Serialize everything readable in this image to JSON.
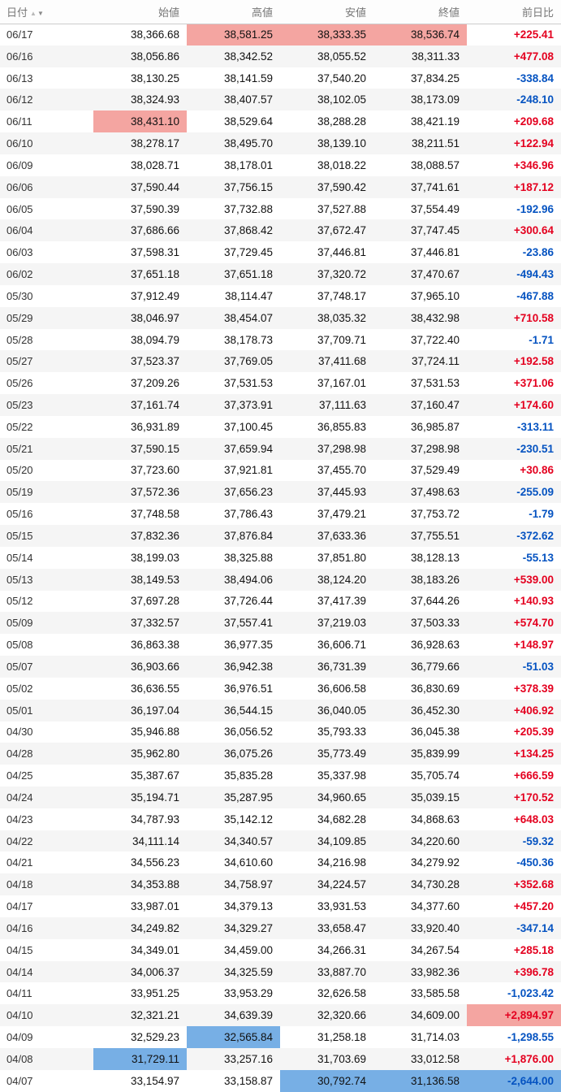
{
  "colors": {
    "positive_text": "#e4001f",
    "negative_text": "#0553c1",
    "period_high_bg": "#f4a5a1",
    "period_low_bg": "#77afe5",
    "alt_row_bg": "#f5f5f5",
    "header_text": "#777777"
  },
  "table": {
    "sort_icons": {
      "asc": "▲",
      "desc": "▼"
    },
    "columns": [
      {
        "key": "date",
        "label": "日付"
      },
      {
        "key": "open",
        "label": "始値"
      },
      {
        "key": "high",
        "label": "高値"
      },
      {
        "key": "low",
        "label": "安値"
      },
      {
        "key": "close",
        "label": "終値"
      },
      {
        "key": "change",
        "label": "前日比"
      }
    ],
    "rows": [
      {
        "date": "06/17",
        "open": "38,366.68",
        "high": "38,581.25",
        "low": "38,333.35",
        "close": "38,536.74",
        "change": "+225.41",
        "highlights": {
          "high": "max",
          "low": "max",
          "close": "max"
        }
      },
      {
        "date": "06/16",
        "open": "38,056.86",
        "high": "38,342.52",
        "low": "38,055.52",
        "close": "38,311.33",
        "change": "+477.08"
      },
      {
        "date": "06/13",
        "open": "38,130.25",
        "high": "38,141.59",
        "low": "37,540.20",
        "close": "37,834.25",
        "change": "-338.84"
      },
      {
        "date": "06/12",
        "open": "38,324.93",
        "high": "38,407.57",
        "low": "38,102.05",
        "close": "38,173.09",
        "change": "-248.10"
      },
      {
        "date": "06/11",
        "open": "38,431.10",
        "high": "38,529.64",
        "low": "38,288.28",
        "close": "38,421.19",
        "change": "+209.68",
        "highlights": {
          "open": "max"
        }
      },
      {
        "date": "06/10",
        "open": "38,278.17",
        "high": "38,495.70",
        "low": "38,139.10",
        "close": "38,211.51",
        "change": "+122.94"
      },
      {
        "date": "06/09",
        "open": "38,028.71",
        "high": "38,178.01",
        "low": "38,018.22",
        "close": "38,088.57",
        "change": "+346.96"
      },
      {
        "date": "06/06",
        "open": "37,590.44",
        "high": "37,756.15",
        "low": "37,590.42",
        "close": "37,741.61",
        "change": "+187.12"
      },
      {
        "date": "06/05",
        "open": "37,590.39",
        "high": "37,732.88",
        "low": "37,527.88",
        "close": "37,554.49",
        "change": "-192.96"
      },
      {
        "date": "06/04",
        "open": "37,686.66",
        "high": "37,868.42",
        "low": "37,672.47",
        "close": "37,747.45",
        "change": "+300.64"
      },
      {
        "date": "06/03",
        "open": "37,598.31",
        "high": "37,729.45",
        "low": "37,446.81",
        "close": "37,446.81",
        "change": "-23.86"
      },
      {
        "date": "06/02",
        "open": "37,651.18",
        "high": "37,651.18",
        "low": "37,320.72",
        "close": "37,470.67",
        "change": "-494.43"
      },
      {
        "date": "05/30",
        "open": "37,912.49",
        "high": "38,114.47",
        "low": "37,748.17",
        "close": "37,965.10",
        "change": "-467.88"
      },
      {
        "date": "05/29",
        "open": "38,046.97",
        "high": "38,454.07",
        "low": "38,035.32",
        "close": "38,432.98",
        "change": "+710.58"
      },
      {
        "date": "05/28",
        "open": "38,094.79",
        "high": "38,178.73",
        "low": "37,709.71",
        "close": "37,722.40",
        "change": "-1.71"
      },
      {
        "date": "05/27",
        "open": "37,523.37",
        "high": "37,769.05",
        "low": "37,411.68",
        "close": "37,724.11",
        "change": "+192.58"
      },
      {
        "date": "05/26",
        "open": "37,209.26",
        "high": "37,531.53",
        "low": "37,167.01",
        "close": "37,531.53",
        "change": "+371.06"
      },
      {
        "date": "05/23",
        "open": "37,161.74",
        "high": "37,373.91",
        "low": "37,111.63",
        "close": "37,160.47",
        "change": "+174.60"
      },
      {
        "date": "05/22",
        "open": "36,931.89",
        "high": "37,100.45",
        "low": "36,855.83",
        "close": "36,985.87",
        "change": "-313.11"
      },
      {
        "date": "05/21",
        "open": "37,590.15",
        "high": "37,659.94",
        "low": "37,298.98",
        "close": "37,298.98",
        "change": "-230.51"
      },
      {
        "date": "05/20",
        "open": "37,723.60",
        "high": "37,921.81",
        "low": "37,455.70",
        "close": "37,529.49",
        "change": "+30.86"
      },
      {
        "date": "05/19",
        "open": "37,572.36",
        "high": "37,656.23",
        "low": "37,445.93",
        "close": "37,498.63",
        "change": "-255.09"
      },
      {
        "date": "05/16",
        "open": "37,748.58",
        "high": "37,786.43",
        "low": "37,479.21",
        "close": "37,753.72",
        "change": "-1.79"
      },
      {
        "date": "05/15",
        "open": "37,832.36",
        "high": "37,876.84",
        "low": "37,633.36",
        "close": "37,755.51",
        "change": "-372.62"
      },
      {
        "date": "05/14",
        "open": "38,199.03",
        "high": "38,325.88",
        "low": "37,851.80",
        "close": "38,128.13",
        "change": "-55.13"
      },
      {
        "date": "05/13",
        "open": "38,149.53",
        "high": "38,494.06",
        "low": "38,124.20",
        "close": "38,183.26",
        "change": "+539.00"
      },
      {
        "date": "05/12",
        "open": "37,697.28",
        "high": "37,726.44",
        "low": "37,417.39",
        "close": "37,644.26",
        "change": "+140.93"
      },
      {
        "date": "05/09",
        "open": "37,332.57",
        "high": "37,557.41",
        "low": "37,219.03",
        "close": "37,503.33",
        "change": "+574.70"
      },
      {
        "date": "05/08",
        "open": "36,863.38",
        "high": "36,977.35",
        "low": "36,606.71",
        "close": "36,928.63",
        "change": "+148.97"
      },
      {
        "date": "05/07",
        "open": "36,903.66",
        "high": "36,942.38",
        "low": "36,731.39",
        "close": "36,779.66",
        "change": "-51.03"
      },
      {
        "date": "05/02",
        "open": "36,636.55",
        "high": "36,976.51",
        "low": "36,606.58",
        "close": "36,830.69",
        "change": "+378.39"
      },
      {
        "date": "05/01",
        "open": "36,197.04",
        "high": "36,544.15",
        "low": "36,040.05",
        "close": "36,452.30",
        "change": "+406.92"
      },
      {
        "date": "04/30",
        "open": "35,946.88",
        "high": "36,056.52",
        "low": "35,793.33",
        "close": "36,045.38",
        "change": "+205.39"
      },
      {
        "date": "04/28",
        "open": "35,962.80",
        "high": "36,075.26",
        "low": "35,773.49",
        "close": "35,839.99",
        "change": "+134.25"
      },
      {
        "date": "04/25",
        "open": "35,387.67",
        "high": "35,835.28",
        "low": "35,337.98",
        "close": "35,705.74",
        "change": "+666.59"
      },
      {
        "date": "04/24",
        "open": "35,194.71",
        "high": "35,287.95",
        "low": "34,960.65",
        "close": "35,039.15",
        "change": "+170.52"
      },
      {
        "date": "04/23",
        "open": "34,787.93",
        "high": "35,142.12",
        "low": "34,682.28",
        "close": "34,868.63",
        "change": "+648.03"
      },
      {
        "date": "04/22",
        "open": "34,111.14",
        "high": "34,340.57",
        "low": "34,109.85",
        "close": "34,220.60",
        "change": "-59.32"
      },
      {
        "date": "04/21",
        "open": "34,556.23",
        "high": "34,610.60",
        "low": "34,216.98",
        "close": "34,279.92",
        "change": "-450.36"
      },
      {
        "date": "04/18",
        "open": "34,353.88",
        "high": "34,758.97",
        "low": "34,224.57",
        "close": "34,730.28",
        "change": "+352.68"
      },
      {
        "date": "04/17",
        "open": "33,987.01",
        "high": "34,379.13",
        "low": "33,931.53",
        "close": "34,377.60",
        "change": "+457.20"
      },
      {
        "date": "04/16",
        "open": "34,249.82",
        "high": "34,329.27",
        "low": "33,658.47",
        "close": "33,920.40",
        "change": "-347.14"
      },
      {
        "date": "04/15",
        "open": "34,349.01",
        "high": "34,459.00",
        "low": "34,266.31",
        "close": "34,267.54",
        "change": "+285.18"
      },
      {
        "date": "04/14",
        "open": "34,006.37",
        "high": "34,325.59",
        "low": "33,887.70",
        "close": "33,982.36",
        "change": "+396.78"
      },
      {
        "date": "04/11",
        "open": "33,951.25",
        "high": "33,953.29",
        "low": "32,626.58",
        "close": "33,585.58",
        "change": "-1,023.42"
      },
      {
        "date": "04/10",
        "open": "32,321.21",
        "high": "34,639.39",
        "low": "32,320.66",
        "close": "34,609.00",
        "change": "+2,894.97",
        "highlights": {
          "change": "max"
        }
      },
      {
        "date": "04/09",
        "open": "32,529.23",
        "high": "32,565.84",
        "low": "31,258.18",
        "close": "31,714.03",
        "change": "-1,298.55",
        "highlights": {
          "high": "min"
        }
      },
      {
        "date": "04/08",
        "open": "31,729.11",
        "high": "33,257.16",
        "low": "31,703.69",
        "close": "33,012.58",
        "change": "+1,876.00",
        "highlights": {
          "open": "min"
        }
      },
      {
        "date": "04/07",
        "open": "33,154.97",
        "high": "33,158.87",
        "low": "30,792.74",
        "close": "31,136.58",
        "change": "-2,644.00",
        "highlights": {
          "low": "min",
          "close": "min",
          "change": "min"
        }
      }
    ]
  }
}
